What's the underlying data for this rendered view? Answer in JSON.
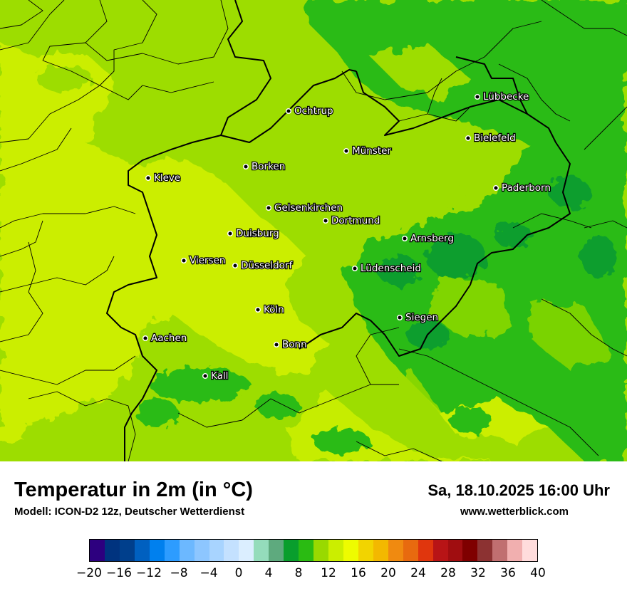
{
  "title": "Temperatur in 2m (in °C)",
  "subtitle": "Modell: ICON-D2 12z, Deutscher Wetterdienst",
  "datetime": "Sa, 18.10.2025 16:00 Uhr",
  "website": "www.wetterblick.com",
  "cities": [
    {
      "name": "Lübbecke"
    },
    {
      "name": "Ochtrup"
    },
    {
      "name": "Bielefeld"
    },
    {
      "name": "Münster"
    },
    {
      "name": "Kleve"
    },
    {
      "name": "Borken"
    },
    {
      "name": "Paderborn"
    },
    {
      "name": "Gelsenkirchen"
    },
    {
      "name": "Dortmund"
    },
    {
      "name": "Duisburg"
    },
    {
      "name": "Arnsberg"
    },
    {
      "name": "Viersen"
    },
    {
      "name": "Düsseldorf"
    },
    {
      "name": "Lüdenscheid"
    },
    {
      "name": "Köln"
    },
    {
      "name": "Siegen"
    },
    {
      "name": "Aachen"
    },
    {
      "name": "Bonn"
    },
    {
      "name": "Kall"
    }
  ],
  "legend": {
    "colors": [
      "#2d007f",
      "#00337f",
      "#003f8c",
      "#0060c0",
      "#0080ee",
      "#2d9cff",
      "#6cb8ff",
      "#8dc6ff",
      "#a8d4ff",
      "#c4e1ff",
      "#dbeeff",
      "#94dcbb",
      "#5eaa7e",
      "#099e2d",
      "#2abb12",
      "#99d900",
      "#cbee00",
      "#eefc00",
      "#f2d400",
      "#f3b800",
      "#f08a10",
      "#e86a0f",
      "#e0360d",
      "#b81416",
      "#a00d10",
      "#7f0000",
      "#8c3232",
      "#c06f70",
      "#f1afaf",
      "#ffdcdc"
    ],
    "ticks": [
      "−20",
      "−16",
      "−12",
      "−8",
      "−4",
      "0",
      "4",
      "8",
      "12",
      "16",
      "20",
      "24",
      "28",
      "32",
      "36",
      "40"
    ]
  }
}
